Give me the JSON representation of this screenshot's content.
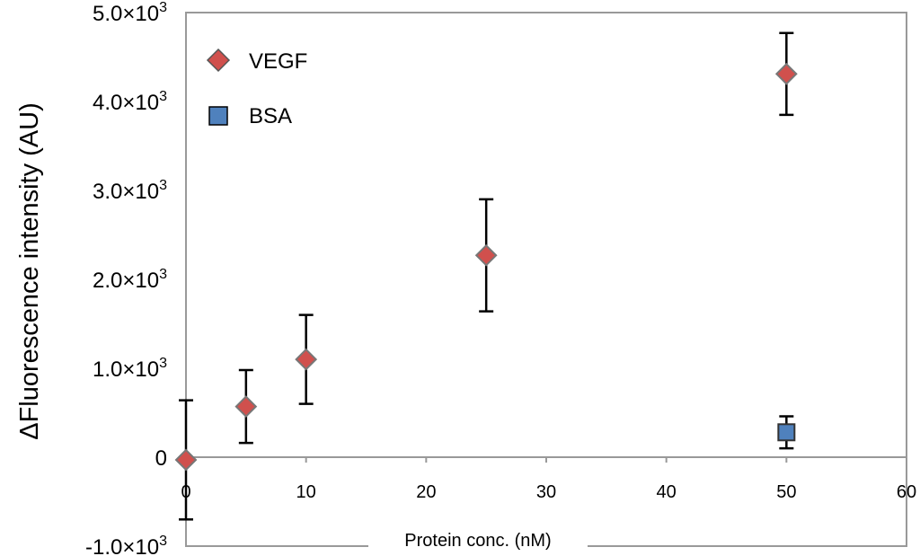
{
  "chart_data": {
    "type": "scatter",
    "title": "",
    "xlabel": "Protein conc. (nM)",
    "ylabel": "ΔFluorescence intensity (AU)",
    "xlim": [
      0,
      60
    ],
    "ylim": [
      -1000,
      5000
    ],
    "x_ticks": [
      0,
      10,
      20,
      30,
      40,
      50,
      60
    ],
    "y_ticks": [
      -1000,
      0,
      1000,
      2000,
      3000,
      4000,
      5000
    ],
    "y_tick_labels": [
      {
        "base": "-1.0×10",
        "exp": "3"
      },
      {
        "base": "0",
        "exp": ""
      },
      {
        "base": "1.0×10",
        "exp": "3"
      },
      {
        "base": "2.0×10",
        "exp": "3"
      },
      {
        "base": "3.0×10",
        "exp": "3"
      },
      {
        "base": "4.0×10",
        "exp": "3"
      },
      {
        "base": "5.0×10",
        "exp": "3"
      }
    ],
    "grid": false,
    "legend": "top-left",
    "series": [
      {
        "name": "VEGF",
        "marker": "diamond",
        "color": "#d0504d",
        "points": [
          {
            "x": 0,
            "y": -30,
            "err": 670
          },
          {
            "x": 5,
            "y": 570,
            "err": 410
          },
          {
            "x": 10,
            "y": 1100,
            "err": 500
          },
          {
            "x": 25,
            "y": 2270,
            "err": 630
          },
          {
            "x": 50,
            "y": 4310,
            "err": 460
          }
        ]
      },
      {
        "name": "BSA",
        "marker": "square",
        "color": "#4f81bd",
        "points": [
          {
            "x": 50,
            "y": 280,
            "err": 180
          }
        ]
      }
    ]
  }
}
